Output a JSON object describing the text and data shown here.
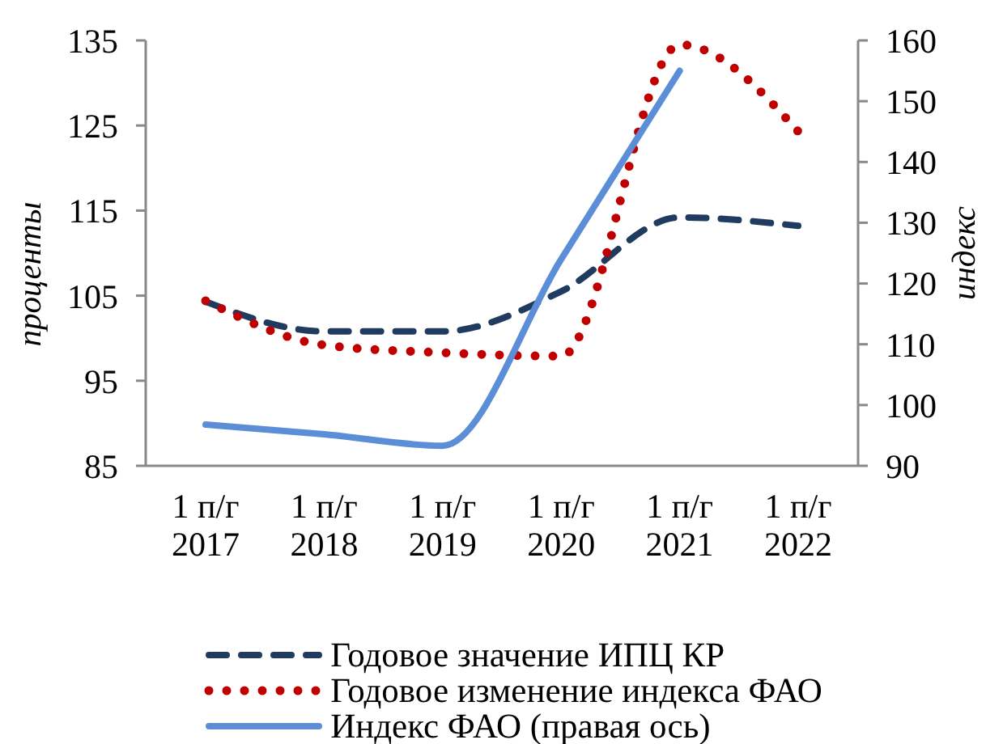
{
  "chart_data": {
    "type": "line",
    "categories": [
      "1 п/г 2017",
      "1 п/г 2018",
      "1 п/г 2019",
      "1 п/г 2020",
      "1 п/г 2021",
      "1 п/г 2022"
    ],
    "ylabel": "проценты",
    "y2label": "индекс",
    "ylim": [
      85,
      135
    ],
    "yticks": [
      85,
      95,
      105,
      115,
      125,
      135
    ],
    "y2lim": [
      90,
      160
    ],
    "y2ticks": [
      90,
      100,
      110,
      120,
      130,
      140,
      150,
      160
    ],
    "series": [
      {
        "name": "Годовое значение ИПЦ КР",
        "color": "#1f3b60",
        "line_style": "dashed",
        "values": [
          104.3,
          100.8,
          100.8,
          105.5,
          114.2,
          113.2
        ]
      },
      {
        "name": "Годовое изменение индекса ФАО",
        "color": "#c00000",
        "line_style": "dotted",
        "values": [
          104.4,
          99.2,
          98.3,
          97.9,
          134.5,
          124.3
        ]
      },
      {
        "name": "Индекс ФАО (правая ось)",
        "color": "#5b8ed6",
        "line_style": "solid",
        "axis": "y2",
        "values": [
          96.8,
          95.2,
          93.3,
          124,
          155,
          null
        ]
      }
    ],
    "grid": false,
    "legend": "bottom",
    "marker": "none"
  }
}
